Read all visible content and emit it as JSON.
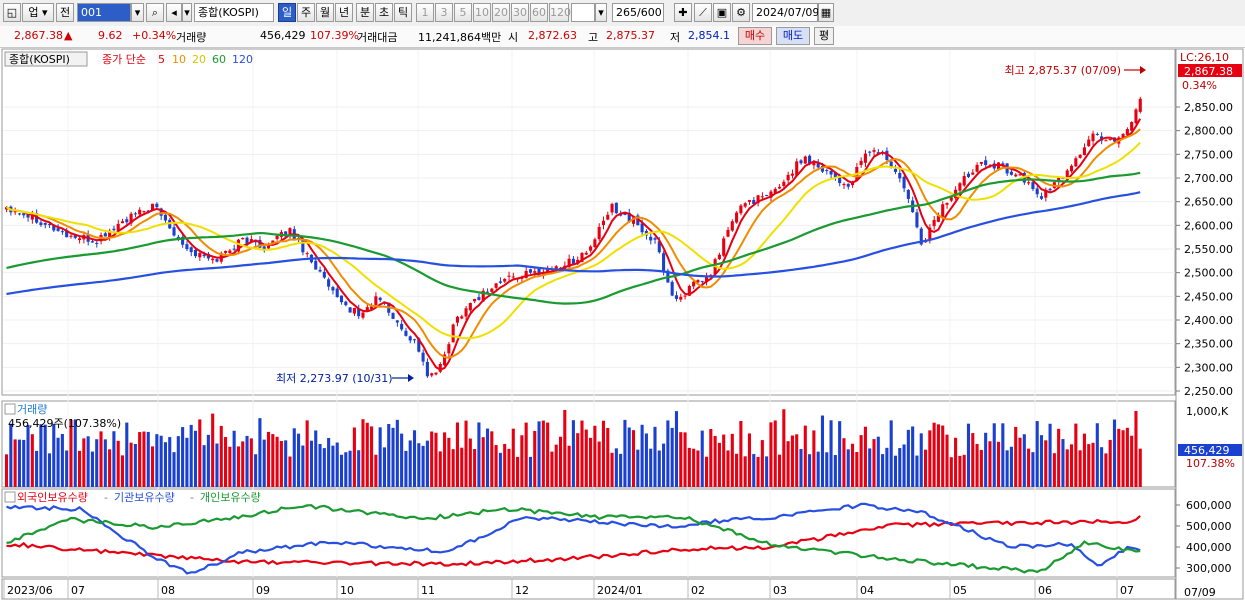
{
  "toolbar": {
    "market": "업",
    "prev_label": "전",
    "code_value": "001",
    "name_value": "종합(KOSPI)",
    "period_buttons": [
      "일",
      "주",
      "월",
      "년",
      "분",
      "초",
      "틱"
    ],
    "selected_period": "일",
    "interval_buttons": [
      "1",
      "3",
      "5",
      "10",
      "20",
      "30",
      "60",
      "120"
    ],
    "count_value": "265/600",
    "date_value": "2024/07/09"
  },
  "quote": {
    "price": "2,867.38",
    "change_arrow": "▲",
    "change": "9.62",
    "change_pct": "+0.34%",
    "volume_label": "거래량",
    "volume": "456,429",
    "volume_ratio": "107.39%",
    "amount_label": "거래대금",
    "amount": "11,241,864백만",
    "open_label": "시",
    "open": "2,872.63",
    "high_label": "고",
    "high": "2,875.37",
    "low_label": "저",
    "low": "2,854.1",
    "buy_label": "매수",
    "sell_label": "매도",
    "eval_label": "평"
  },
  "price_panel": {
    "legend_name": "종합(KOSPI)",
    "legend_type": "종가 단순",
    "ma_labels": [
      "5",
      "10",
      "20",
      "60",
      "120"
    ],
    "ma_colors": [
      "#e60012",
      "#f08c00",
      "#f0e000",
      "#1a9a30",
      "#2850e0"
    ],
    "lc_label": "LC:26,10",
    "current_price": "2,867.38",
    "current_pct": "0.34%",
    "high_note": "최고 2,875.37 (07/09)",
    "low_note": "최저 2,273.97 (10/31)",
    "y_ticks": [
      "2,850.00",
      "2,800.00",
      "2,750.00",
      "2,700.00",
      "2,650.00",
      "2,600.00",
      "2,550.00",
      "2,500.00",
      "2,450.00",
      "2,400.00",
      "2,350.00",
      "2,300.00",
      "2,250.00"
    ]
  },
  "volume_panel": {
    "title": "거래량",
    "value_text": "456,429주(107.38%)",
    "top_tick": "1,000,K",
    "current_value": "456,429",
    "current_pct": "107.38%"
  },
  "holdings_panel": {
    "legend": [
      {
        "label": "외국인보유수량",
        "color": "#e60012"
      },
      {
        "label": "기관보유수량",
        "color": "#2850e0"
      },
      {
        "label": "개인보유수량",
        "color": "#1a9a30"
      }
    ],
    "y_ticks": [
      "600,000",
      "500,000",
      "400,000",
      "300,000"
    ]
  },
  "x_axis": [
    "2023/06",
    "07",
    "08",
    "09",
    "10",
    "11",
    "12",
    "2024/01",
    "02",
    "03",
    "04",
    "05",
    "06",
    "07"
  ],
  "x_axis_end": "07/09",
  "colors": {
    "up": "#e60012",
    "down": "#1a40d0",
    "accent": "#2d5ec8"
  }
}
